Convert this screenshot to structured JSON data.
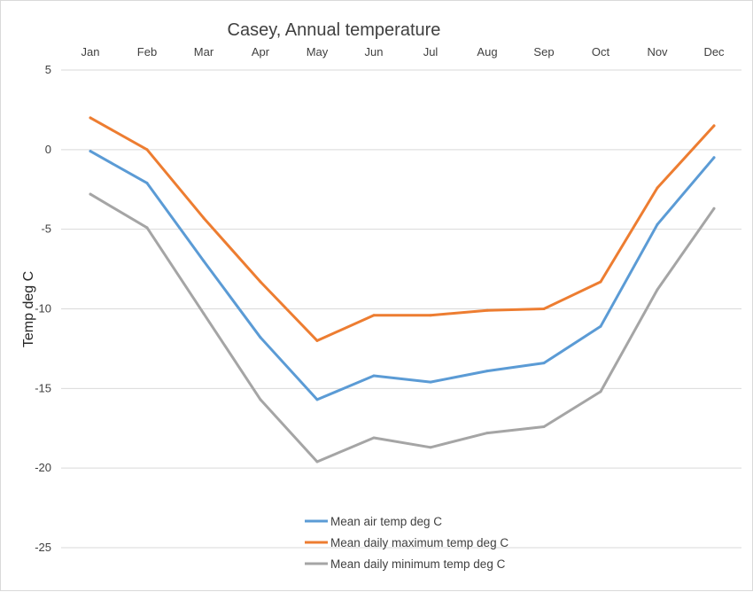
{
  "chart_data": {
    "type": "line",
    "title": "Casey, Annual temperature",
    "xlabel": "",
    "ylabel": "Temp deg C",
    "categories": [
      "Jan",
      "Feb",
      "Mar",
      "Apr",
      "May",
      "Jun",
      "Jul",
      "Aug",
      "Sep",
      "Oct",
      "Nov",
      "Dec"
    ],
    "ylim": [
      -25,
      5
    ],
    "yticks": [
      5,
      0,
      -5,
      -10,
      -15,
      -20,
      -25
    ],
    "x_axis_position": "top",
    "grid": true,
    "legend_position": "bottom",
    "series": [
      {
        "name": "Mean air temp deg C",
        "color": "#5b9bd5",
        "values": [
          -0.1,
          -2.1,
          -7.0,
          -11.8,
          -15.7,
          -14.2,
          -14.6,
          -13.9,
          -13.4,
          -11.1,
          -4.7,
          -0.5
        ]
      },
      {
        "name": "Mean daily maximum temp deg C",
        "color": "#ed7d31",
        "values": [
          2.0,
          0.0,
          -4.3,
          -8.3,
          -12.0,
          -10.4,
          -10.4,
          -10.1,
          -10.0,
          -8.3,
          -2.4,
          1.5
        ]
      },
      {
        "name": "Mean daily minimum temp deg C",
        "color": "#a5a5a5",
        "values": [
          -2.8,
          -4.9,
          -10.3,
          -15.7,
          -19.6,
          -18.1,
          -18.7,
          -17.8,
          -17.4,
          -15.2,
          -8.8,
          -3.7
        ]
      }
    ]
  }
}
